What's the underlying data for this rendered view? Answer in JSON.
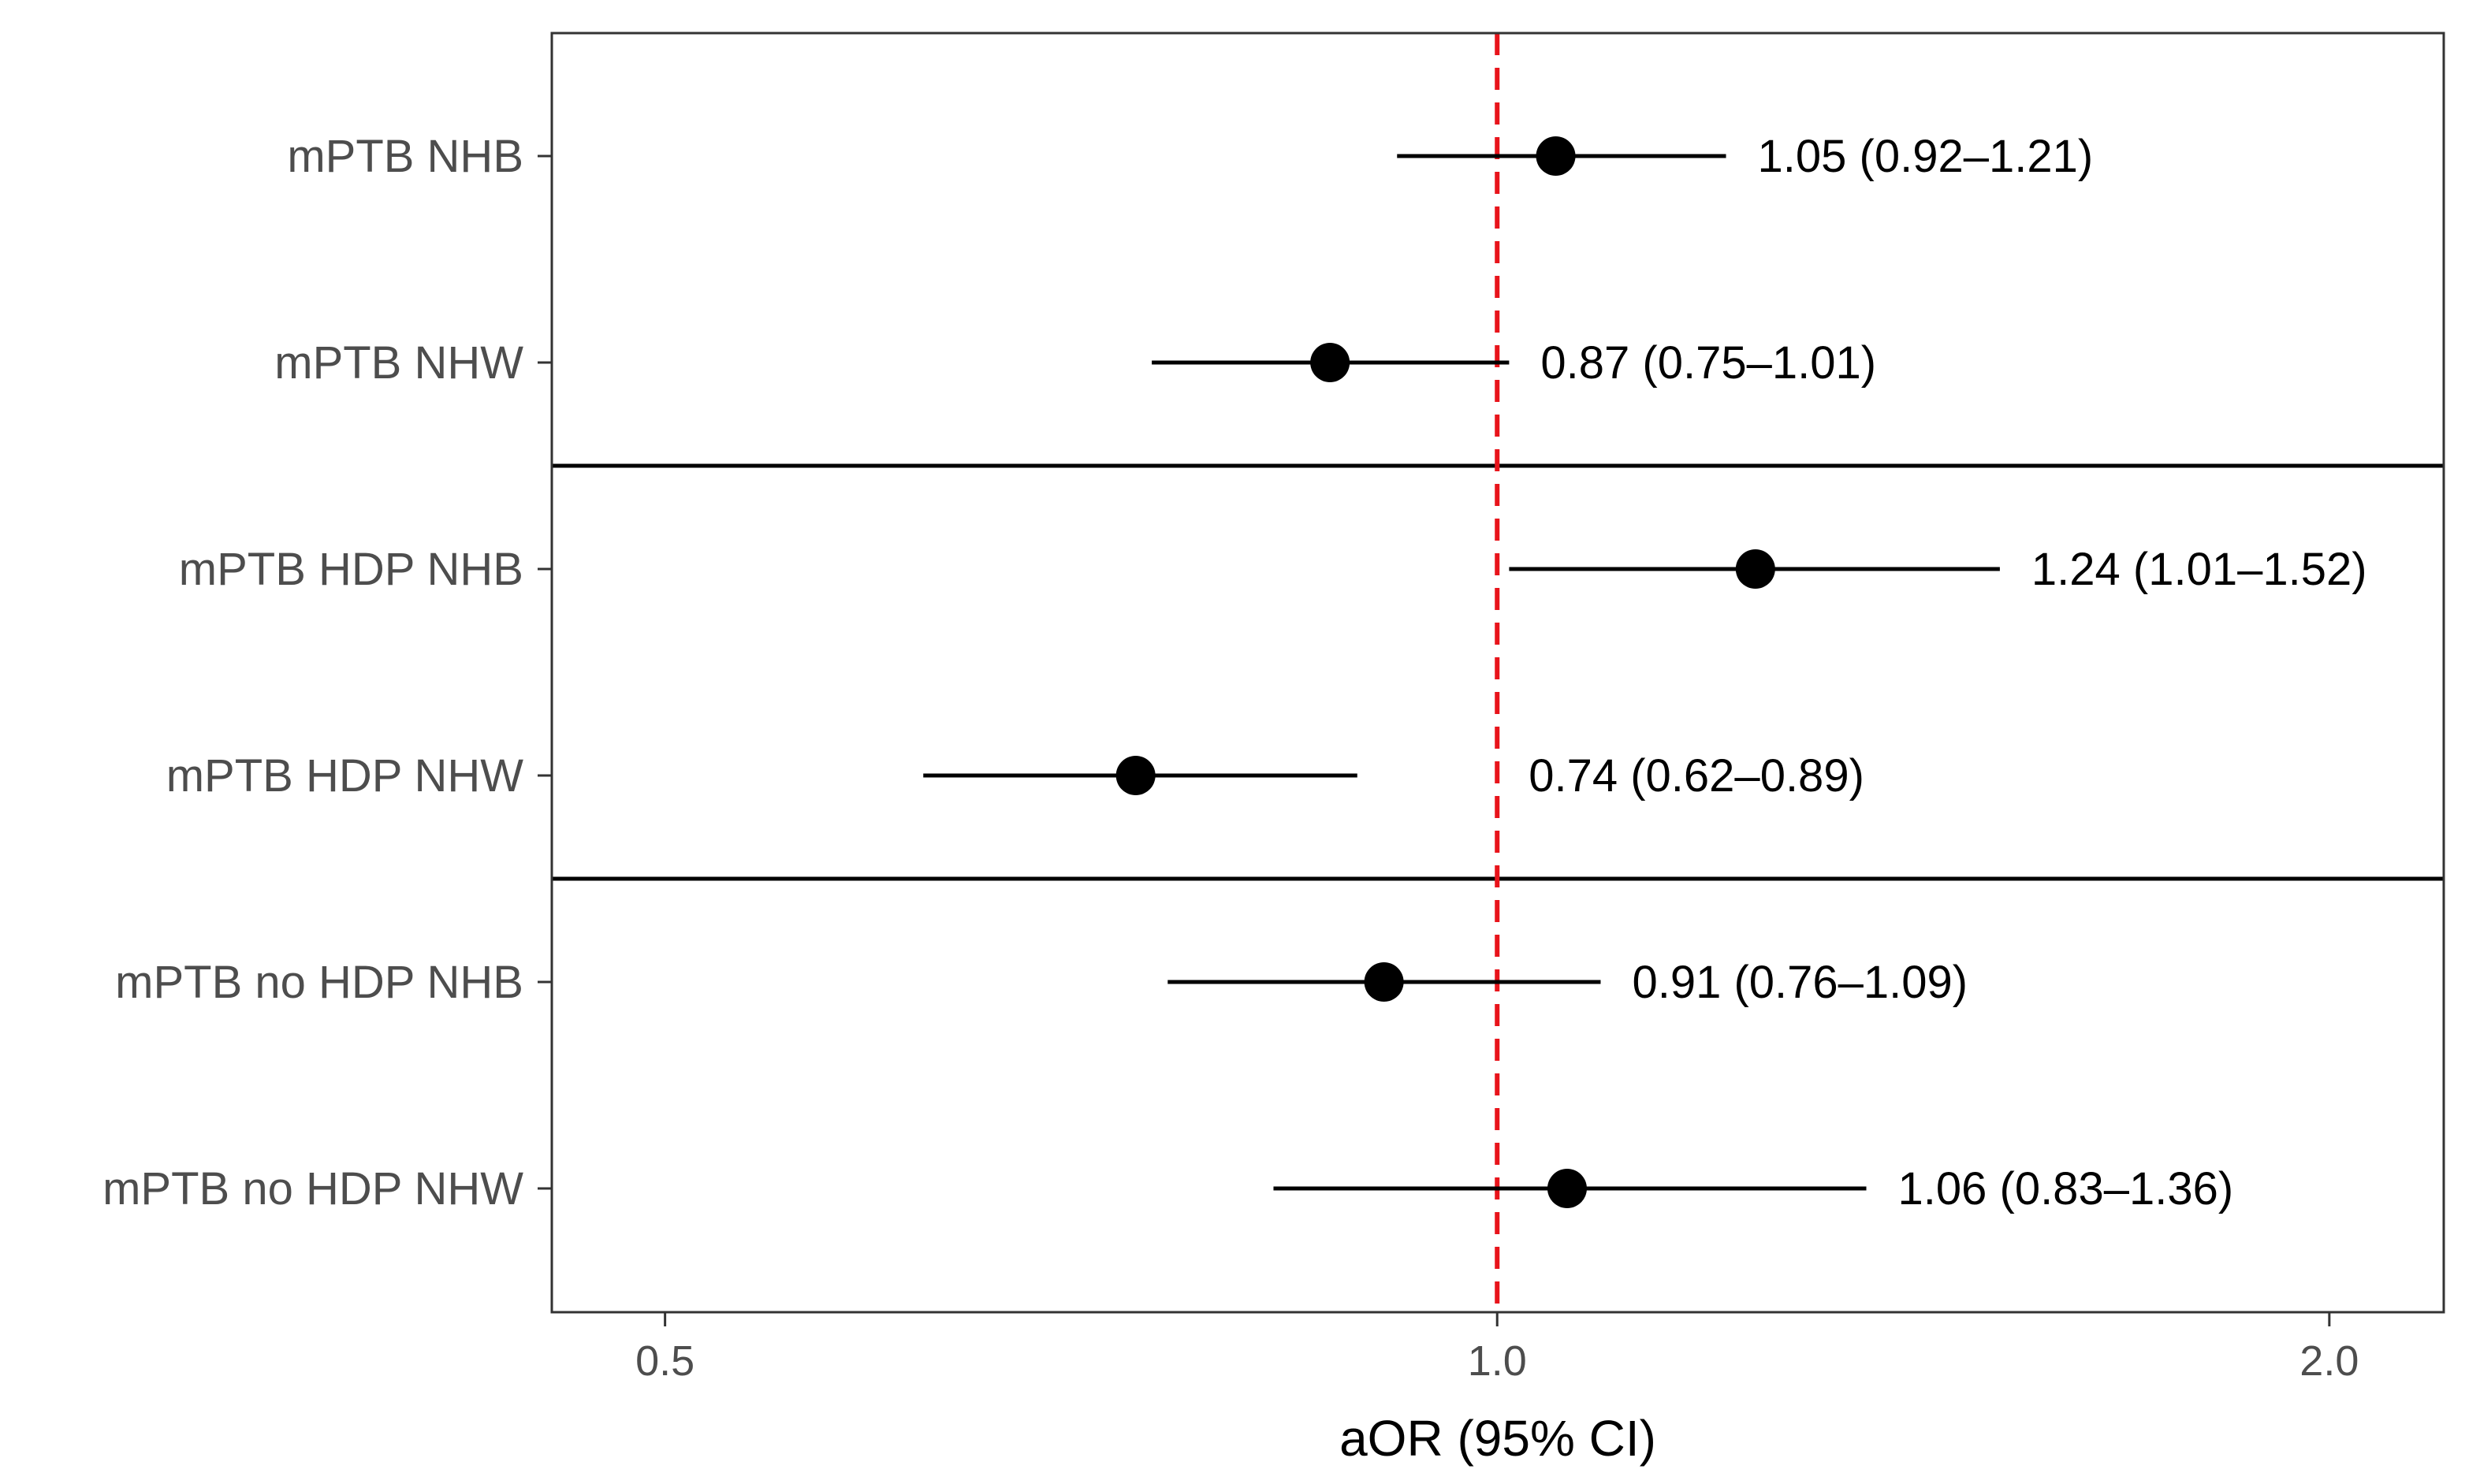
{
  "chart_data": {
    "type": "forest",
    "title": "",
    "xlabel": "aOR (95% CI)",
    "ylabel": "",
    "x_scale": "log",
    "xlim": [
      0.455,
      2.2
    ],
    "x_ticks": [
      0.5,
      1.0,
      2.0
    ],
    "x_tick_labels": [
      "0.5",
      "1.0",
      "2.0"
    ],
    "reference_line": {
      "value": 1.0,
      "style": "dashed",
      "color": "#e8141b"
    },
    "marker_color": "#000000",
    "grid": false,
    "rows": [
      {
        "label": "mPTB NHB",
        "estimate": 1.05,
        "lower": 0.92,
        "upper": 1.21,
        "annotation": "1.05 (0.92–1.21)"
      },
      {
        "label": "mPTB NHW",
        "estimate": 0.87,
        "lower": 0.75,
        "upper": 1.01,
        "annotation": "0.87 (0.75–1.01)"
      },
      {
        "label": "mPTB HDP NHB",
        "estimate": 1.24,
        "lower": 1.01,
        "upper": 1.52,
        "annotation": "1.24 (1.01–1.52)"
      },
      {
        "label": "mPTB HDP NHW",
        "estimate": 0.74,
        "lower": 0.62,
        "upper": 0.89,
        "annotation": "0.74 (0.62–0.89)"
      },
      {
        "label": "mPTB no HDP NHB",
        "estimate": 0.91,
        "lower": 0.76,
        "upper": 1.09,
        "annotation": "0.91 (0.76–1.09)"
      },
      {
        "label": "mPTB no HDP NHW",
        "estimate": 1.06,
        "lower": 0.83,
        "upper": 1.36,
        "annotation": "1.06 (0.83–1.36)"
      }
    ],
    "group_separators_after_rows": [
      2,
      4
    ]
  }
}
